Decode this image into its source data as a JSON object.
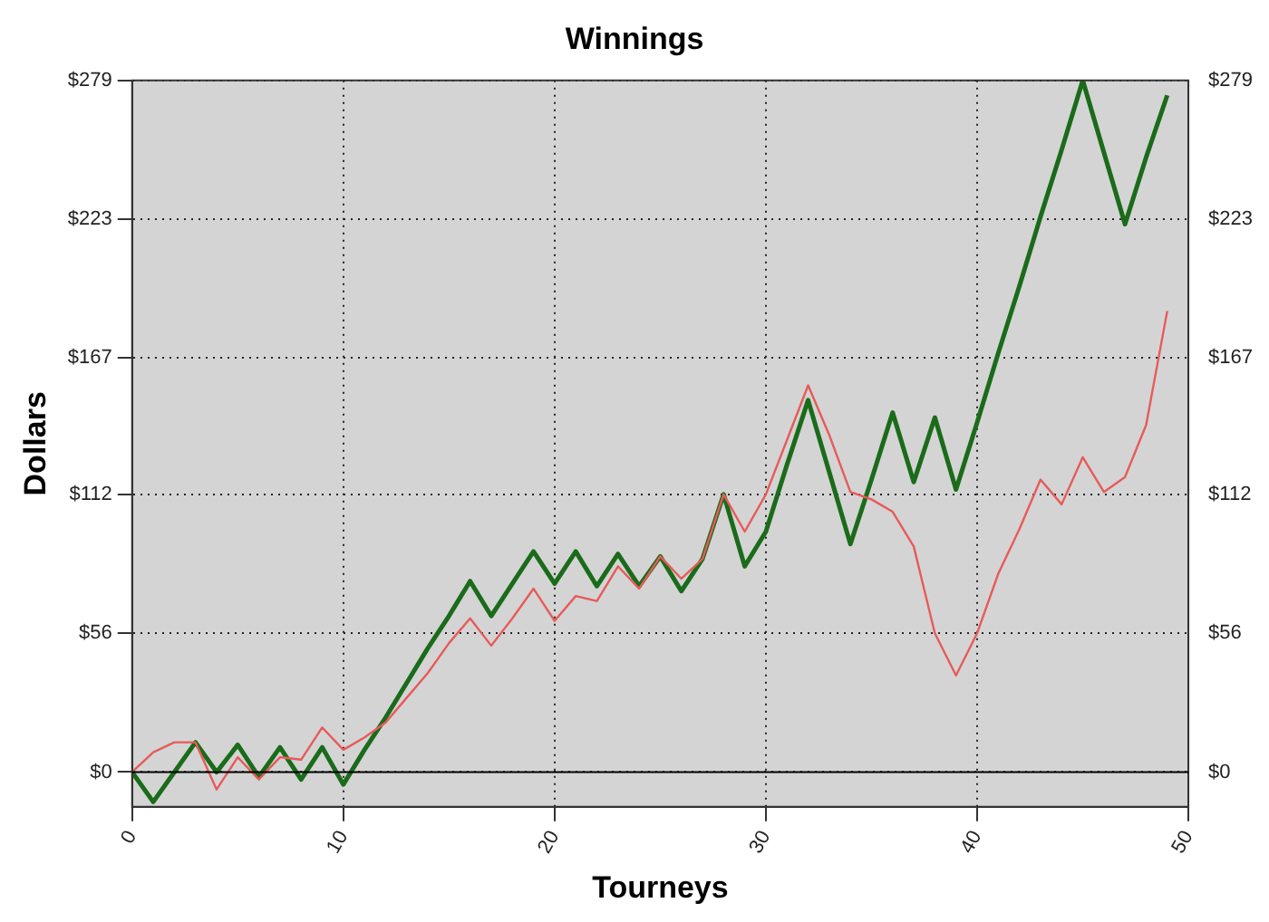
{
  "chart_data": {
    "type": "line",
    "title": "Winnings",
    "xlabel": "Tourneys",
    "ylabel": "Dollars",
    "x": [
      0,
      1,
      2,
      3,
      4,
      5,
      6,
      7,
      8,
      9,
      10,
      11,
      12,
      13,
      14,
      15,
      16,
      17,
      18,
      19,
      20,
      21,
      22,
      23,
      24,
      25,
      26,
      27,
      28,
      29,
      30,
      31,
      32,
      33,
      34,
      35,
      36,
      37,
      38,
      39,
      40,
      41,
      42,
      43,
      44,
      45,
      46,
      47,
      48,
      49
    ],
    "series": [
      {
        "color": "#e85a5a",
        "values": [
          0,
          8,
          12,
          12,
          -7,
          6,
          -3,
          6,
          5,
          18,
          9,
          14,
          20,
          30,
          40,
          52,
          62,
          51,
          62,
          74,
          61,
          71,
          69,
          83,
          74,
          87,
          78,
          86,
          112,
          97,
          112,
          134,
          156,
          136,
          113,
          110,
          105,
          91,
          56,
          39,
          56,
          80,
          98,
          118,
          108,
          127,
          113,
          119,
          140,
          186
        ]
      },
      {
        "color": "#1a6b1a",
        "values": [
          0,
          -12,
          0,
          12,
          0,
          11,
          -2,
          10,
          -3,
          10,
          -5,
          9,
          22,
          36,
          50,
          63,
          77,
          63,
          76,
          89,
          76,
          89,
          75,
          88,
          75,
          87,
          73,
          86,
          112,
          83,
          97,
          124,
          150,
          121,
          92,
          118,
          145,
          117,
          143,
          114,
          141,
          169,
          196,
          224,
          251,
          279,
          250,
          221,
          248,
          273
        ]
      }
    ],
    "xlim": [
      0,
      50
    ],
    "xticks": [
      0,
      10,
      20,
      30,
      40,
      50
    ],
    "ylim": [
      -14,
      279
    ],
    "yticks": [
      {
        "value": 0,
        "label": "$0"
      },
      {
        "value": 56,
        "label": "$56"
      },
      {
        "value": 112,
        "label": "$112"
      },
      {
        "value": 167,
        "label": "$167"
      },
      {
        "value": 223,
        "label": "$223"
      },
      {
        "value": 279,
        "label": "$279"
      }
    ],
    "y2lim": [
      -14,
      279
    ],
    "y2ticks": [
      {
        "value": 0,
        "label": "$0"
      },
      {
        "value": 56,
        "label": "$56"
      },
      {
        "value": 112,
        "label": "$112"
      },
      {
        "value": 167,
        "label": "$167"
      },
      {
        "value": 223,
        "label": "$223"
      },
      {
        "value": 279,
        "label": "$279"
      }
    ],
    "ref_lines": [
      {
        "axis": "y",
        "value": 0,
        "color": "#000000"
      }
    ],
    "grid": true,
    "legend": false,
    "marker": "none",
    "line_style": "solid"
  }
}
